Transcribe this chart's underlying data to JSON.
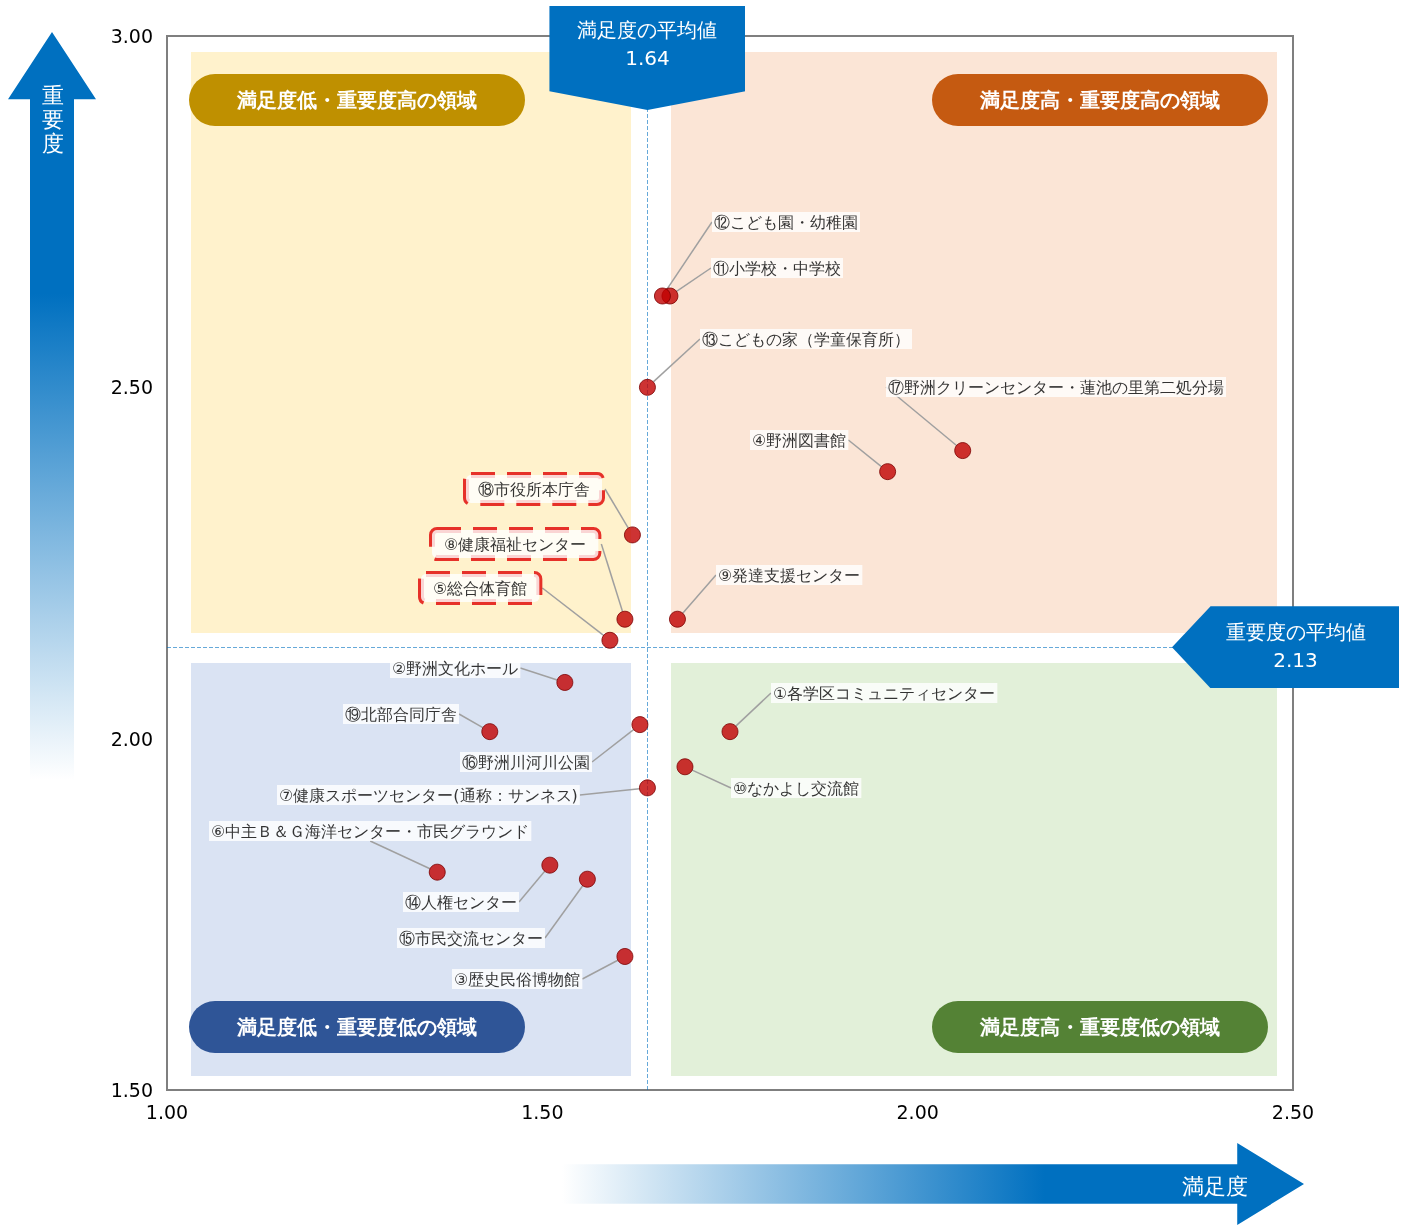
{
  "chart_data": {
    "type": "scatter",
    "xlabel": "満足度",
    "ylabel": "重要度",
    "xlim": [
      1,
      2.5
    ],
    "xticks": [
      {
        "value": 1,
        "label": "1.00"
      },
      {
        "value": 1.5,
        "label": "1.50"
      },
      {
        "value": 2,
        "label": "2.00"
      },
      {
        "value": 2.5,
        "label": "2.50"
      }
    ],
    "ylim": [
      1.5,
      3
    ],
    "yticks": [
      {
        "value": 1.5,
        "label": "1.50"
      },
      {
        "value": 2,
        "label": "2.00"
      },
      {
        "value": 2.5,
        "label": "2.50"
      },
      {
        "value": 3,
        "label": "3.00"
      }
    ],
    "grid": false,
    "legend": false,
    "marker": "circle",
    "ref_lines": [
      {
        "axis": "x",
        "value": 1.64,
        "label": "満足度の平均値\n1.64",
        "color": "#0070c0",
        "line_style": "dashed"
      },
      {
        "axis": "y",
        "value": 2.13,
        "label": "重要度の平均値\n2.13",
        "color": "#0070c0",
        "line_style": "dashed"
      }
    ],
    "annotations": [
      "満足度低・重要度高の領域",
      "満足度高・重要度高の領域",
      "満足度低・重要度低の領域",
      "満足度高・重要度低の領域"
    ],
    "series": [
      {
        "name": "①各学区コミュニティセンター",
        "color": "#c00000",
        "x": [
          1.75
        ],
        "values": [
          2.01
        ]
      },
      {
        "name": "②野洲文化ホール",
        "color": "#c00000",
        "x": [
          1.53
        ],
        "values": [
          2.08
        ]
      },
      {
        "name": "③歴史民俗博物館",
        "color": "#c00000",
        "x": [
          1.61
        ],
        "values": [
          1.69
        ]
      },
      {
        "name": "④野洲図書館",
        "color": "#c00000",
        "x": [
          1.96
        ],
        "values": [
          2.38
        ]
      },
      {
        "name": "⑤総合体育館",
        "color": "#c00000",
        "x": [
          1.59
        ],
        "values": [
          2.14
        ]
      },
      {
        "name": "⑥中主Ｂ＆Ｇ海洋センター・市民グラウンド",
        "color": "#c00000",
        "x": [
          1.36
        ],
        "values": [
          1.81
        ]
      },
      {
        "name": "⑦健康スポーツセンター(通称：サンネス)",
        "color": "#c00000",
        "x": [
          1.64
        ],
        "values": [
          1.93
        ]
      },
      {
        "name": "⑧健康福祉センター",
        "color": "#c00000",
        "x": [
          1.61
        ],
        "values": [
          2.17
        ]
      },
      {
        "name": "⑨発達支援センター",
        "color": "#c00000",
        "x": [
          1.68
        ],
        "values": [
          2.17
        ]
      },
      {
        "name": "⑩なかよし交流館",
        "color": "#c00000",
        "x": [
          1.69
        ],
        "values": [
          1.96
        ]
      },
      {
        "name": "⑪小学校・中学校",
        "color": "#c00000",
        "x": [
          1.67
        ],
        "values": [
          2.63
        ]
      },
      {
        "name": "⑫こども園・幼稚園",
        "color": "#c00000",
        "x": [
          1.66
        ],
        "values": [
          2.63
        ]
      },
      {
        "name": "⑬こどもの家（学童保育所）",
        "color": "#c00000",
        "x": [
          1.64
        ],
        "values": [
          2.5
        ]
      },
      {
        "name": "⑭人権センター",
        "color": "#c00000",
        "x": [
          1.51
        ],
        "values": [
          1.82
        ]
      },
      {
        "name": "⑮市民交流センター",
        "color": "#c00000",
        "x": [
          1.56
        ],
        "values": [
          1.8
        ]
      },
      {
        "name": "⑯野洲川河川公園",
        "color": "#c00000",
        "x": [
          1.63
        ],
        "values": [
          2.02
        ]
      },
      {
        "name": "⑰野洲クリーンセンター・蓮池の里第二処分場",
        "color": "#c00000",
        "x": [
          2.06
        ],
        "values": [
          2.41
        ]
      },
      {
        "name": "⑱市役所本庁舎",
        "color": "#c00000",
        "x": [
          1.62
        ],
        "values": [
          2.29
        ]
      },
      {
        "name": "⑲北部合同庁舎",
        "color": "#c00000",
        "x": [
          1.43
        ],
        "values": [
          2.01
        ]
      }
    ]
  }
}
